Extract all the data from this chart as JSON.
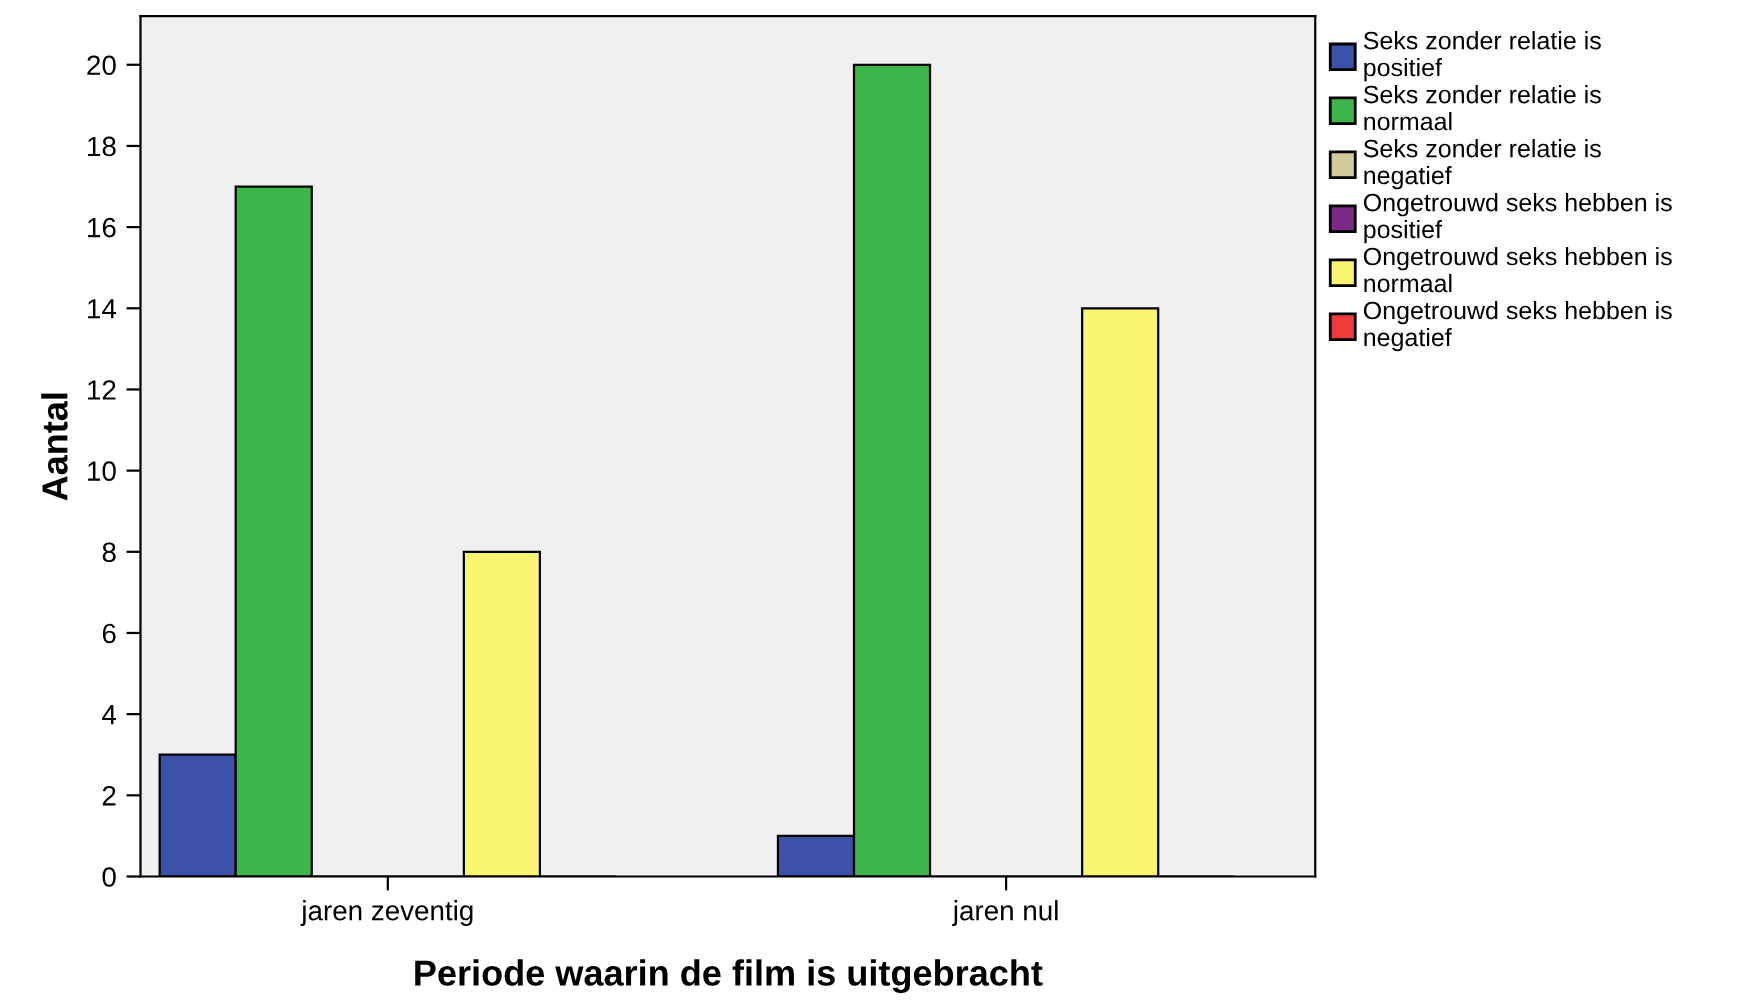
{
  "chart_data": {
    "type": "bar",
    "xlabel": "Periode waarin de film is uitgebracht",
    "ylabel": "Aantal",
    "categories": [
      "jaren zeventig",
      "jaren nul"
    ],
    "series": [
      {
        "name": "Seks zonder relatie is positief",
        "color": "#3c51a8",
        "values": [
          3,
          1
        ]
      },
      {
        "name": "Seks zonder relatie is normaal",
        "color": "#3cb54a",
        "values": [
          17,
          20
        ]
      },
      {
        "name": "Seks zonder relatie is negatief",
        "color": "#d2c99a",
        "values": [
          0,
          0
        ]
      },
      {
        "name": "Ongetrouwd seks hebben is positief",
        "color": "#7b2a85",
        "values": [
          0,
          0
        ]
      },
      {
        "name": "Ongetrouwd seks hebben is normaal",
        "color": "#f8f570",
        "values": [
          8,
          14
        ]
      },
      {
        "name": "Ongetrouwd seks hebben is negatief",
        "color": "#ee3b3b",
        "values": [
          0,
          0
        ]
      }
    ],
    "ylim": [
      0,
      21.2
    ],
    "yticks": [
      0,
      2,
      4,
      6,
      8,
      10,
      12,
      14,
      16,
      18,
      20
    ],
    "grid": false,
    "legend": "right"
  }
}
